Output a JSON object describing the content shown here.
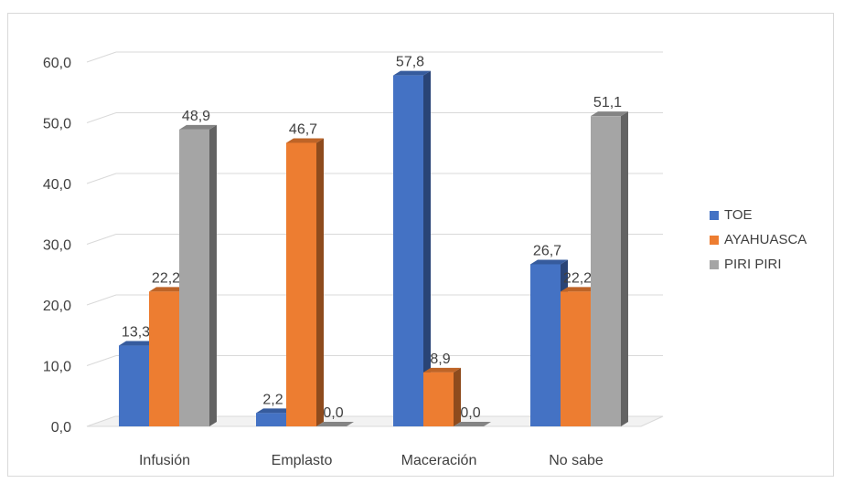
{
  "chart_data": {
    "type": "bar",
    "categories": [
      "Infusión",
      "Emplasto",
      "Maceración",
      "No sabe"
    ],
    "series": [
      {
        "name": "TOE",
        "color": "#4472c4",
        "values": [
          13.3,
          2.2,
          57.8,
          26.7
        ],
        "labels": [
          "13,3",
          "2,2",
          "57,8",
          "26,7"
        ]
      },
      {
        "name": "AYAHUASCA",
        "color": "#ed7d31",
        "values": [
          22.2,
          46.7,
          8.9,
          22.2
        ],
        "labels": [
          "22,2",
          "46,7",
          "8,9",
          "22,2"
        ]
      },
      {
        "name": "PIRI PIRI",
        "color": "#a5a5a5",
        "values": [
          48.9,
          0.0,
          0.0,
          51.1
        ],
        "labels": [
          "48,9",
          "0,0",
          "0,0",
          "51,1"
        ]
      }
    ],
    "y_ticks": [
      "0,0",
      "10,0",
      "20,0",
      "30,0",
      "40,0",
      "50,0",
      "60,0"
    ],
    "ylim": [
      0,
      60
    ],
    "grid": true,
    "legend_position": "right",
    "style": "3d-clustered-column"
  }
}
